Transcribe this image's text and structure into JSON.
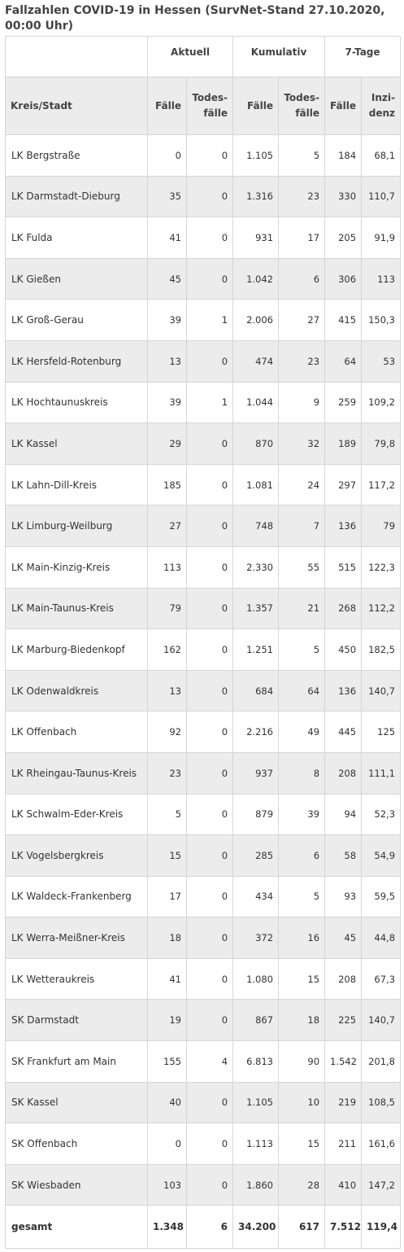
{
  "title": "Fallzahlen COVID-19 in Hessen (SurvNet-Stand 27.10.2020, 00:00 Uhr)",
  "header": {
    "group_aktuell": "Aktuell",
    "group_kumulativ": "Kumulativ",
    "group_7tage": "7-Tage",
    "col_kreis": "Kreis/Stadt",
    "col_faelle": "Fälle",
    "col_todesfaelle_1": "Todes-",
    "col_todesfaelle_2": "fälle",
    "col_inzidenz_1": "Inzi-",
    "col_inzidenz_2": "denz"
  },
  "rows": [
    {
      "name": "LK Bergstraße",
      "akt_f": "0",
      "akt_t": "0",
      "kum_f": "1.105",
      "kum_t": "5",
      "t7_f": "184",
      "t7_i": "68,1"
    },
    {
      "name": "LK Darmstadt-Dieburg",
      "akt_f": "35",
      "akt_t": "0",
      "kum_f": "1.316",
      "kum_t": "23",
      "t7_f": "330",
      "t7_i": "110,7"
    },
    {
      "name": "LK Fulda",
      "akt_f": "41",
      "akt_t": "0",
      "kum_f": "931",
      "kum_t": "17",
      "t7_f": "205",
      "t7_i": "91,9"
    },
    {
      "name": "LK Gießen",
      "akt_f": "45",
      "akt_t": "0",
      "kum_f": "1.042",
      "kum_t": "6",
      "t7_f": "306",
      "t7_i": "113"
    },
    {
      "name": "LK Groß-Gerau",
      "akt_f": "39",
      "akt_t": "1",
      "kum_f": "2.006",
      "kum_t": "27",
      "t7_f": "415",
      "t7_i": "150,3"
    },
    {
      "name": "LK Hersfeld-Rotenburg",
      "akt_f": "13",
      "akt_t": "0",
      "kum_f": "474",
      "kum_t": "23",
      "t7_f": "64",
      "t7_i": "53"
    },
    {
      "name": "LK Hochtaunuskreis",
      "akt_f": "39",
      "akt_t": "1",
      "kum_f": "1.044",
      "kum_t": "9",
      "t7_f": "259",
      "t7_i": "109,2"
    },
    {
      "name": "LK Kassel",
      "akt_f": "29",
      "akt_t": "0",
      "kum_f": "870",
      "kum_t": "32",
      "t7_f": "189",
      "t7_i": "79,8"
    },
    {
      "name": "LK Lahn-Dill-Kreis",
      "akt_f": "185",
      "akt_t": "0",
      "kum_f": "1.081",
      "kum_t": "24",
      "t7_f": "297",
      "t7_i": "117,2"
    },
    {
      "name": "LK Limburg-Weilburg",
      "akt_f": "27",
      "akt_t": "0",
      "kum_f": "748",
      "kum_t": "7",
      "t7_f": "136",
      "t7_i": "79"
    },
    {
      "name": "LK Main-Kinzig-Kreis",
      "akt_f": "113",
      "akt_t": "0",
      "kum_f": "2.330",
      "kum_t": "55",
      "t7_f": "515",
      "t7_i": "122,3"
    },
    {
      "name": "LK Main-Taunus-Kreis",
      "akt_f": "79",
      "akt_t": "0",
      "kum_f": "1.357",
      "kum_t": "21",
      "t7_f": "268",
      "t7_i": "112,2"
    },
    {
      "name": "LK Marburg-Biedenkopf",
      "akt_f": "162",
      "akt_t": "0",
      "kum_f": "1.251",
      "kum_t": "5",
      "t7_f": "450",
      "t7_i": "182,5"
    },
    {
      "name": "LK Odenwaldkreis",
      "akt_f": "13",
      "akt_t": "0",
      "kum_f": "684",
      "kum_t": "64",
      "t7_f": "136",
      "t7_i": "140,7"
    },
    {
      "name": "LK Offenbach",
      "akt_f": "92",
      "akt_t": "0",
      "kum_f": "2.216",
      "kum_t": "49",
      "t7_f": "445",
      "t7_i": "125"
    },
    {
      "name": "LK Rheingau-Taunus-Kreis",
      "akt_f": "23",
      "akt_t": "0",
      "kum_f": "937",
      "kum_t": "8",
      "t7_f": "208",
      "t7_i": "111,1"
    },
    {
      "name": "LK Schwalm-Eder-Kreis",
      "akt_f": "5",
      "akt_t": "0",
      "kum_f": "879",
      "kum_t": "39",
      "t7_f": "94",
      "t7_i": "52,3"
    },
    {
      "name": "LK Vogelsbergkreis",
      "akt_f": "15",
      "akt_t": "0",
      "kum_f": "285",
      "kum_t": "6",
      "t7_f": "58",
      "t7_i": "54,9"
    },
    {
      "name": "LK Waldeck-Frankenberg",
      "akt_f": "17",
      "akt_t": "0",
      "kum_f": "434",
      "kum_t": "5",
      "t7_f": "93",
      "t7_i": "59,5"
    },
    {
      "name": "LK Werra-Meißner-Kreis",
      "akt_f": "18",
      "akt_t": "0",
      "kum_f": "372",
      "kum_t": "16",
      "t7_f": "45",
      "t7_i": "44,8"
    },
    {
      "name": "LK Wetteraukreis",
      "akt_f": "41",
      "akt_t": "0",
      "kum_f": "1.080",
      "kum_t": "15",
      "t7_f": "208",
      "t7_i": "67,3"
    },
    {
      "name": "SK Darmstadt",
      "akt_f": "19",
      "akt_t": "0",
      "kum_f": "867",
      "kum_t": "18",
      "t7_f": "225",
      "t7_i": "140,7"
    },
    {
      "name": "SK Frankfurt am Main",
      "akt_f": "155",
      "akt_t": "4",
      "kum_f": "6.813",
      "kum_t": "90",
      "t7_f": "1.542",
      "t7_i": "201,8"
    },
    {
      "name": "SK Kassel",
      "akt_f": "40",
      "akt_t": "0",
      "kum_f": "1.105",
      "kum_t": "10",
      "t7_f": "219",
      "t7_i": "108,5"
    },
    {
      "name": "SK Offenbach",
      "akt_f": "0",
      "akt_t": "0",
      "kum_f": "1.113",
      "kum_t": "15",
      "t7_f": "211",
      "t7_i": "161,6"
    },
    {
      "name": "SK Wiesbaden",
      "akt_f": "103",
      "akt_t": "0",
      "kum_f": "1.860",
      "kum_t": "28",
      "t7_f": "410",
      "t7_i": "147,2"
    }
  ],
  "total": {
    "name": "gesamt",
    "akt_f": "1.348",
    "akt_t": "6",
    "kum_f": "34.200",
    "kum_t": "617",
    "t7_f": "7.512",
    "t7_i": "119,4"
  }
}
